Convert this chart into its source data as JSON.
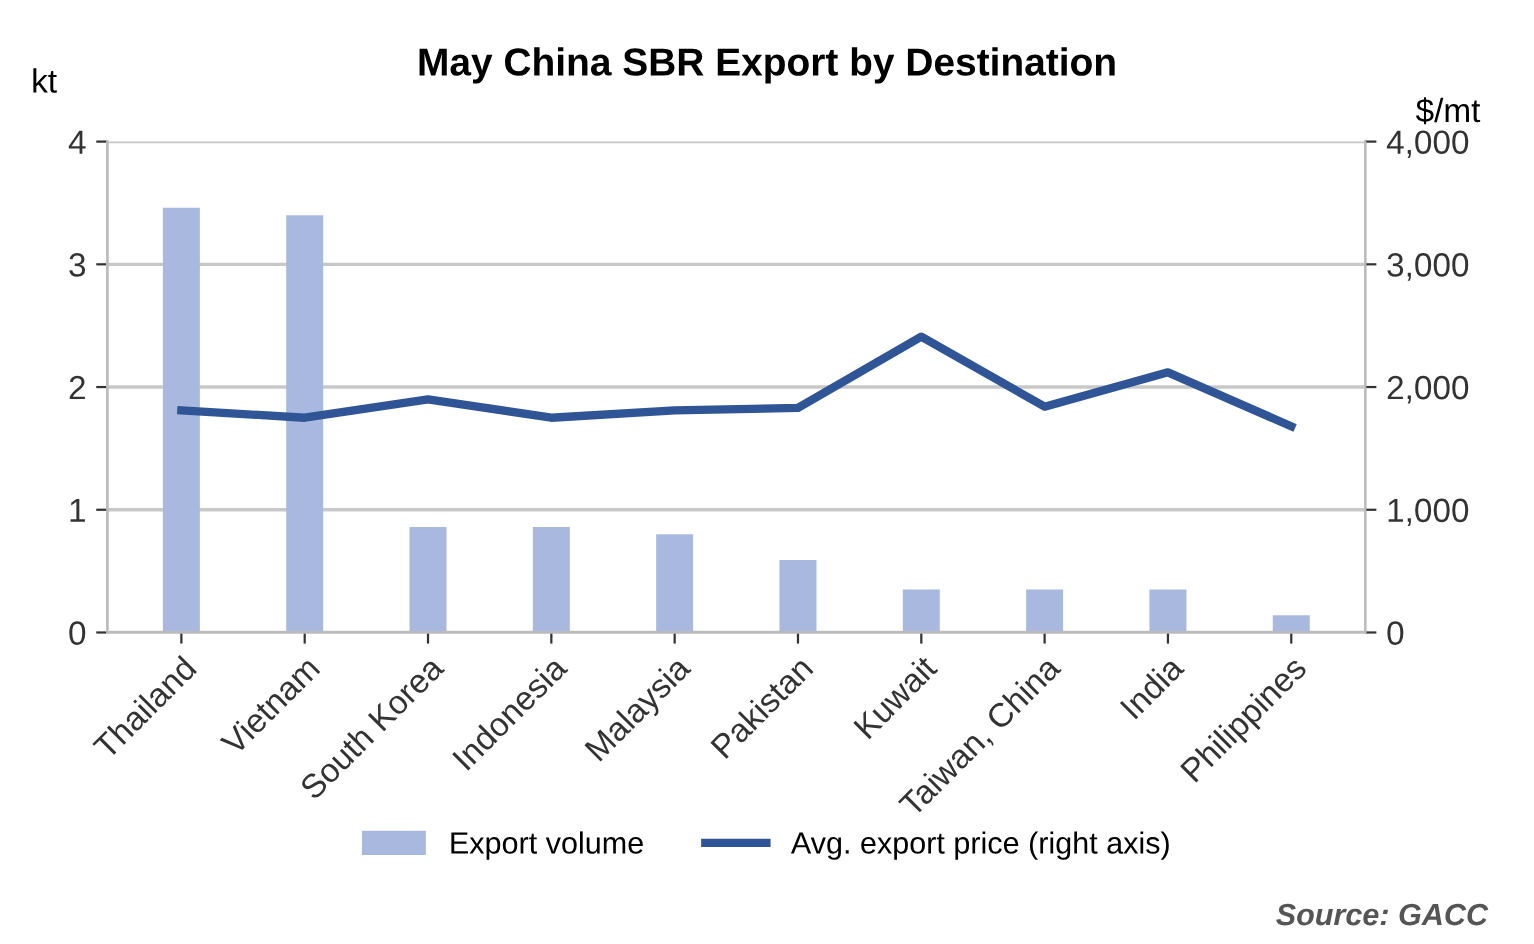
{
  "chart_data": {
    "type": "bar",
    "title": "May China SBR Export by Destination",
    "ylabel": "kt",
    "y2label": "$/mt",
    "categories": [
      "Thailand",
      "Vietnam",
      "South Korea",
      "Indonesia",
      "Malaysia",
      "Pakistan",
      "Kuwait",
      "Taiwan, China",
      "India",
      "Philippines"
    ],
    "series": [
      {
        "name": "Export volume",
        "color": "#a9b8de",
        "values": [
          3.46,
          3.4,
          0.86,
          0.86,
          0.8,
          0.59,
          0.35,
          0.35,
          0.35,
          0.14
        ]
      },
      {
        "name": "Avg. export price (right axis)",
        "type": "line",
        "axis": "y2",
        "color": "#2f5597",
        "values": [
          1810,
          1750,
          1900,
          1750,
          1810,
          1830,
          2410,
          1840,
          2120,
          1680
        ]
      }
    ],
    "ylim": [
      0,
      4
    ],
    "yticks": [
      0,
      1,
      2,
      3,
      4
    ],
    "y2lim": [
      0,
      4000
    ],
    "y2ticks": [
      {
        "value": 0,
        "label": "0"
      },
      {
        "value": 1000,
        "label": "1,000"
      },
      {
        "value": 2000,
        "label": "2,000"
      },
      {
        "value": 3000,
        "label": "3,000"
      },
      {
        "value": 4000,
        "label": "4,000"
      }
    ],
    "grid": "y",
    "legend": "bottom",
    "annotations": [
      "Source: GACC"
    ]
  }
}
